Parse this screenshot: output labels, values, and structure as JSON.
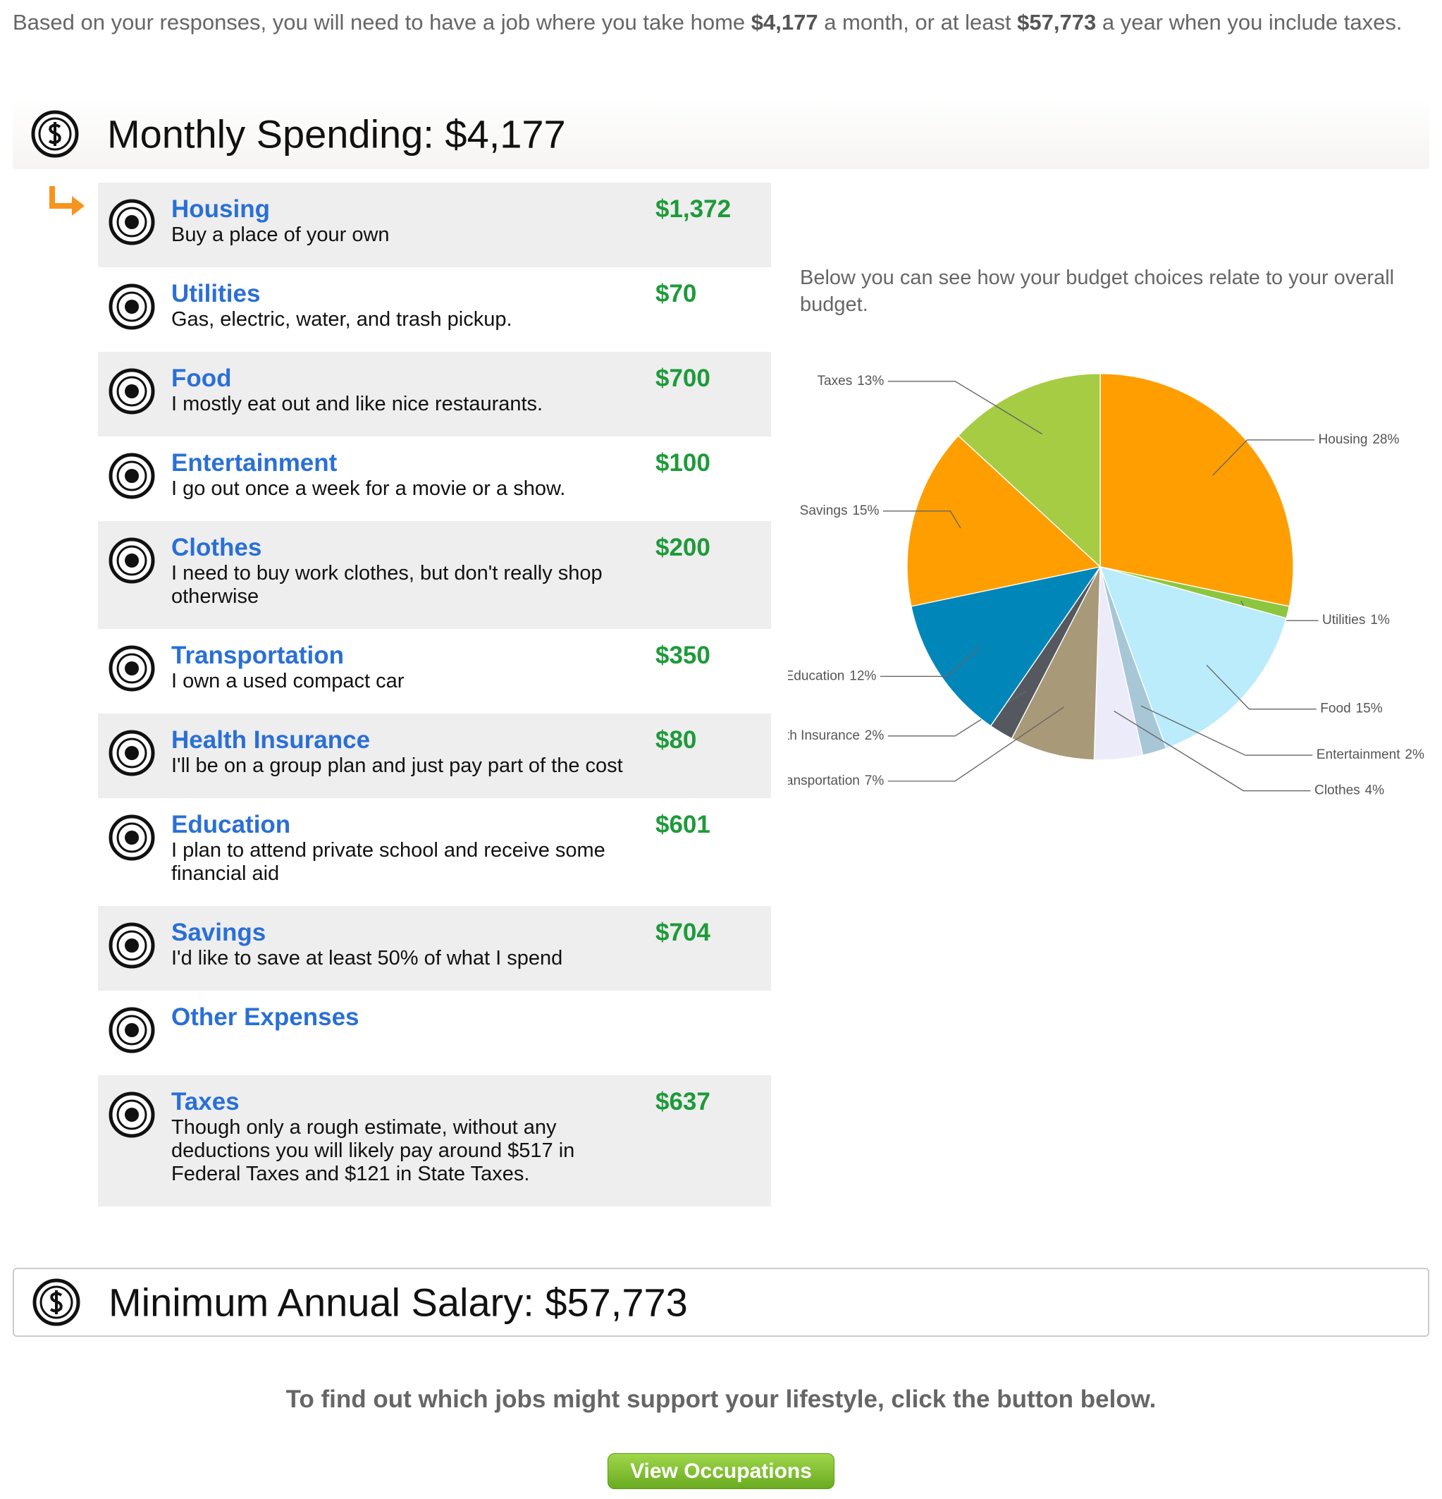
{
  "intro": {
    "parts": [
      "Based on your responses, you will need to have a job where you take home ",
      "$4,177",
      " a month, or at least ",
      "$57,773",
      " a year when you include taxes."
    ]
  },
  "spending_heading": "Monthly Spending: $4,177",
  "items": [
    {
      "name": "Housing",
      "description": "Buy a place of your own",
      "amount": "$1,372"
    },
    {
      "name": "Utilities",
      "description": "Gas, electric, water, and trash pickup.",
      "amount": "$70"
    },
    {
      "name": "Food",
      "description": "I mostly eat out and like nice restaurants.",
      "amount": "$700"
    },
    {
      "name": "Entertainment",
      "description": "I go out once a week for a movie or a show.",
      "amount": "$100"
    },
    {
      "name": "Clothes",
      "description": "I need to buy work clothes, but don't really shop otherwise",
      "amount": "$200"
    },
    {
      "name": "Transportation",
      "description": "I own a used compact car",
      "amount": "$350"
    },
    {
      "name": "Health Insurance",
      "description": "I'll be on a group plan and just pay part of the cost",
      "amount": "$80"
    },
    {
      "name": "Education",
      "description": "I plan to attend private school and receive some financial aid",
      "amount": "$601"
    },
    {
      "name": "Savings",
      "description": "I'd like to save at least 50% of what I spend",
      "amount": "$704"
    },
    {
      "name": "Other Expenses"
    },
    {
      "name": "Taxes",
      "description": "Though only a rough estimate, without any deductions you will likely pay around $517 in Federal Taxes and $121 in State Taxes.",
      "amount": "$637"
    }
  ],
  "chart_intro": "Below you can see how your budget choices relate to your overall budget.",
  "chart_data": {
    "type": "pie",
    "categories": [
      "Housing",
      "Utilities",
      "Food",
      "Entertainment",
      "Clothes",
      "Transportation",
      "Health Insurance",
      "Education",
      "Savings",
      "Taxes"
    ],
    "values": [
      28,
      1,
      15,
      2,
      4,
      7,
      2,
      12,
      15,
      13
    ],
    "value_labels": [
      "28%",
      "1%",
      "15%",
      "2%",
      "4%",
      "7%",
      "2%",
      "12%",
      "15%",
      "13%"
    ],
    "colors": [
      "#ff9e00",
      "#8cc63f",
      "#baecfb",
      "#a7c7d6",
      "#ecebfa",
      "#a89a78",
      "#55595f",
      "#0086b8",
      "#ff9e00",
      "#a6cc44"
    ]
  },
  "salary_heading": "Minimum Annual Salary: $57,773",
  "cta": "To find out which jobs might support your lifestyle, click the button below.",
  "button": "View Occupations"
}
